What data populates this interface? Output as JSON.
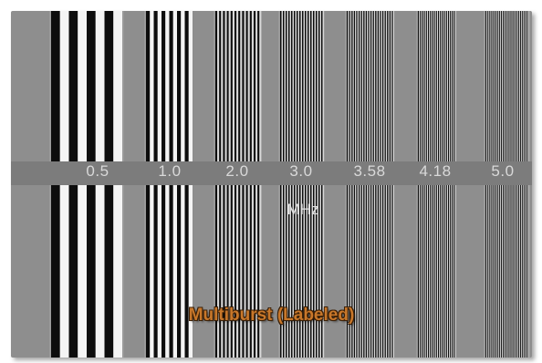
{
  "bursts": [
    {
      "label": "0.5"
    },
    {
      "label": "1.0"
    },
    {
      "label": "2.0"
    },
    {
      "label": "3.0"
    },
    {
      "label": "3.58"
    },
    {
      "label": "4.18"
    },
    {
      "label": "5.0"
    }
  ],
  "unit": "MHz",
  "caption": "Multiburst (Labeled)",
  "colors": {
    "background_gray": "#8e8e8e",
    "label_band": "#7a7a7a",
    "caption_orange": "#c8772a"
  }
}
